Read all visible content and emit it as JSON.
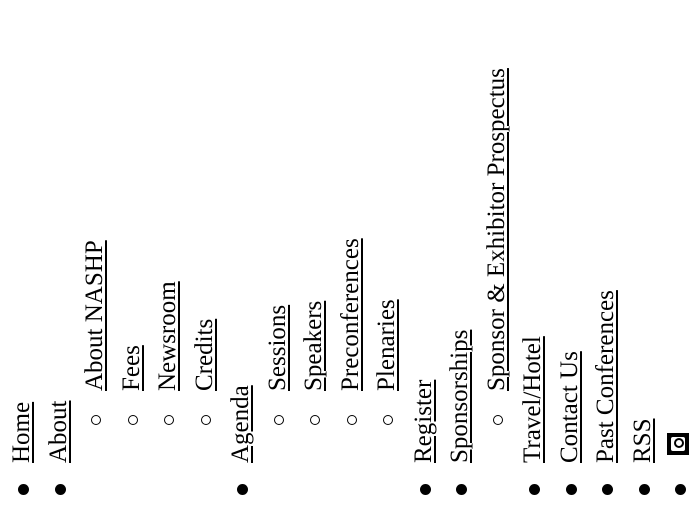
{
  "menu": {
    "home": "Home",
    "about": "About",
    "about_nashp": "About NASHP",
    "fees": "Fees",
    "newsroom": "Newsroom",
    "credits": "Credits",
    "agenda": "Agenda",
    "sessions": "Sessions",
    "speakers": "Speakers",
    "preconferences": "Preconferences",
    "plenaries": "Plenaries",
    "register": "Register",
    "sponsorships": "Sponsorships",
    "sponsor_prospectus": "Sponsor & Exhibitor Prospectus",
    "travel_hotel": "Travel/Hotel",
    "contact_us": "Contact Us",
    "past_conferences": "Past Conferences",
    "rss": "RSS"
  },
  "icons": {
    "last_item_icon": "square-badge-icon"
  }
}
